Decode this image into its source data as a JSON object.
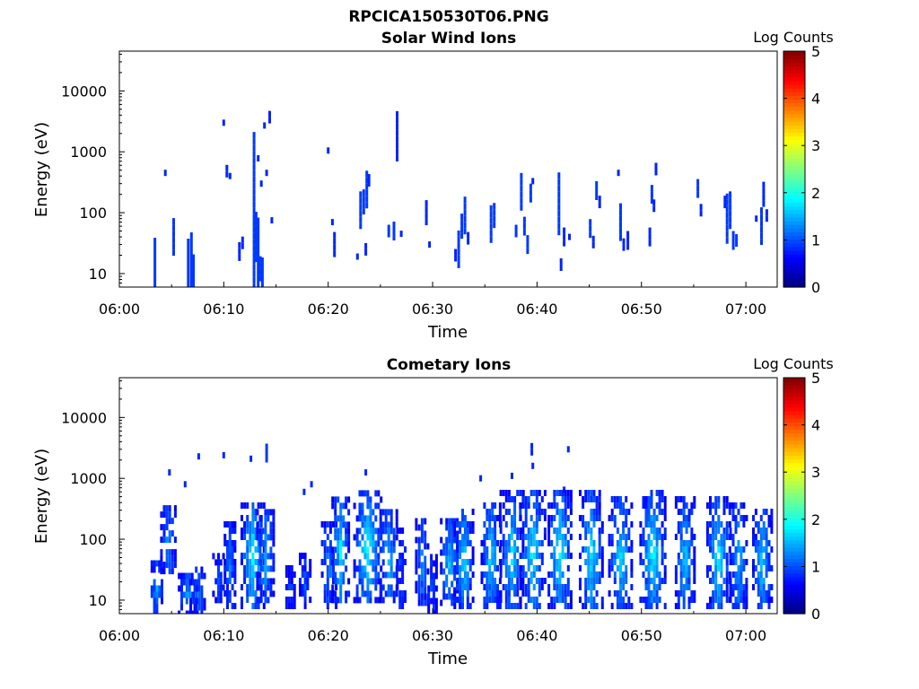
{
  "figure": {
    "title": "RPCICA150530T06.PNG"
  },
  "chart_data": [
    {
      "type": "heatmap",
      "title": "Solar Wind Ions",
      "xlabel": "Time",
      "ylabel": "Energy (eV)",
      "x_ticks": [
        "06:00",
        "06:10",
        "06:20",
        "06:30",
        "06:40",
        "06:50",
        "07:00"
      ],
      "x_range_minutes": [
        0,
        63
      ],
      "y_scale": "log",
      "y_range": [
        6,
        45000
      ],
      "y_ticks": [
        "10",
        "100",
        "1000",
        "10000"
      ],
      "colorbar": {
        "label": "Log Counts",
        "range": [
          0,
          5
        ],
        "ticks": [
          "0",
          "1",
          "2",
          "3",
          "4",
          "5"
        ],
        "colormap": "jet"
      },
      "cells": [
        [
          3.4,
          15,
          8,
          0.9
        ],
        [
          4.4,
          450,
          1,
          0.8
        ],
        [
          5.2,
          40,
          6,
          0.9
        ],
        [
          6.6,
          9,
          12,
          0.9
        ],
        [
          6.9,
          9,
          14,
          0.9
        ],
        [
          7.1,
          8,
          8,
          0.9
        ],
        [
          10.0,
          3000,
          1,
          0.8
        ],
        [
          10.3,
          480,
          2,
          0.8
        ],
        [
          10.6,
          400,
          1,
          0.8
        ],
        [
          11.5,
          23,
          3,
          0.8
        ],
        [
          11.8,
          32,
          2,
          0.8
        ],
        [
          12.9,
          60,
          30,
          0.9
        ],
        [
          13.1,
          40,
          8,
          0.9
        ],
        [
          13.3,
          20,
          12,
          0.9
        ],
        [
          13.5,
          12,
          4,
          0.9
        ],
        [
          13.7,
          9,
          6,
          0.9
        ],
        [
          13.3,
          780,
          1,
          0.8
        ],
        [
          13.6,
          300,
          1,
          0.8
        ],
        [
          13.9,
          2700,
          1,
          0.8
        ],
        [
          14.1,
          450,
          1,
          0.8
        ],
        [
          14.4,
          3700,
          2,
          0.8
        ],
        [
          14.6,
          75,
          1,
          0.8
        ],
        [
          20.0,
          1050,
          1,
          0.8
        ],
        [
          20.4,
          70,
          1,
          0.8
        ],
        [
          20.6,
          30,
          4,
          0.8
        ],
        [
          22.8,
          19,
          1,
          0.8
        ],
        [
          23.1,
          110,
          6,
          0.9
        ],
        [
          23.4,
          150,
          4,
          0.9
        ],
        [
          23.7,
          240,
          6,
          0.9
        ],
        [
          23.9,
          340,
          2,
          0.8
        ],
        [
          23.6,
          25,
          2,
          0.8
        ],
        [
          25.8,
          50,
          2,
          0.9
        ],
        [
          26.3,
          50,
          3,
          0.9
        ],
        [
          26.6,
          1800,
          8,
          0.8
        ],
        [
          27.0,
          45,
          1,
          0.8
        ],
        [
          29.4,
          100,
          4,
          0.8
        ],
        [
          29.7,
          30,
          1,
          0.8
        ],
        [
          32.2,
          20,
          2,
          0.8
        ],
        [
          32.5,
          25,
          6,
          0.9
        ],
        [
          32.8,
          60,
          4,
          0.9
        ],
        [
          33.1,
          90,
          6,
          0.9
        ],
        [
          33.4,
          38,
          2,
          0.8
        ],
        [
          35.6,
          65,
          6,
          0.9
        ],
        [
          35.9,
          90,
          4,
          0.9
        ],
        [
          38.0,
          50,
          2,
          0.9
        ],
        [
          38.5,
          220,
          6,
          0.9
        ],
        [
          38.8,
          60,
          3,
          0.9
        ],
        [
          39.1,
          30,
          3,
          0.9
        ],
        [
          39.4,
          210,
          3,
          0.9
        ],
        [
          39.6,
          330,
          1,
          0.8
        ],
        [
          42.1,
          140,
          10,
          0.9
        ],
        [
          42.3,
          14,
          2,
          0.8
        ],
        [
          42.6,
          40,
          3,
          0.8
        ],
        [
          43.1,
          40,
          1,
          0.8
        ],
        [
          45.1,
          55,
          3,
          0.9
        ],
        [
          45.4,
          33,
          2,
          0.8
        ],
        [
          45.7,
          230,
          3,
          0.9
        ],
        [
          46.0,
          150,
          2,
          0.8
        ],
        [
          48.0,
          70,
          6,
          0.9
        ],
        [
          48.3,
          30,
          2,
          0.8
        ],
        [
          48.7,
          35,
          3,
          0.8
        ],
        [
          47.8,
          450,
          1,
          0.8
        ],
        [
          51.0,
          200,
          3,
          0.9
        ],
        [
          51.4,
          520,
          2,
          0.8
        ],
        [
          51.2,
          130,
          2,
          0.8
        ],
        [
          50.8,
          40,
          3,
          0.8
        ],
        [
          55.4,
          250,
          3,
          0.9
        ],
        [
          55.7,
          110,
          2,
          0.8
        ],
        [
          58.0,
          150,
          2,
          0.8
        ],
        [
          58.2,
          80,
          8,
          0.9
        ],
        [
          58.5,
          110,
          6,
          0.9
        ],
        [
          58.8,
          35,
          3,
          0.9
        ],
        [
          59.1,
          35,
          2,
          0.9
        ],
        [
          61.0,
          80,
          1,
          0.8
        ],
        [
          61.5,
          60,
          6,
          0.9
        ],
        [
          61.7,
          200,
          4,
          0.8
        ],
        [
          62.0,
          90,
          2,
          0.8
        ]
      ]
    },
    {
      "type": "heatmap",
      "title": "Cometary Ions",
      "xlabel": "Time",
      "ylabel": "Energy (eV)",
      "x_ticks": [
        "06:00",
        "06:10",
        "06:20",
        "06:30",
        "06:40",
        "06:50",
        "07:00"
      ],
      "x_range_minutes": [
        0,
        63
      ],
      "y_scale": "log",
      "y_range": [
        6,
        45000
      ],
      "y_ticks": [
        "10",
        "100",
        "1000",
        "10000"
      ],
      "colorbar": {
        "label": "Log Counts",
        "range": [
          0,
          5
        ],
        "ticks": [
          "0",
          "1",
          "2",
          "3",
          "4",
          "5"
        ],
        "colormap": "jet"
      },
      "bursts": [
        [
          3.6,
          6,
          45,
          0.6,
          1.4
        ],
        [
          4.7,
          30,
          400,
          0.8,
          1.3
        ],
        [
          6.6,
          6,
          30,
          1.0,
          1.4
        ],
        [
          7.5,
          6,
          40,
          0.8,
          1.2
        ],
        [
          9.5,
          10,
          60,
          0.6,
          1.0
        ],
        [
          10.6,
          8,
          200,
          0.6,
          1.2
        ],
        [
          12.8,
          8,
          450,
          1.2,
          1.9
        ],
        [
          14.0,
          10,
          350,
          0.9,
          1.5
        ],
        [
          16.4,
          8,
          40,
          0.5,
          0.9
        ],
        [
          17.8,
          8,
          60,
          0.6,
          1.0
        ],
        [
          20.1,
          8,
          200,
          0.8,
          1.3
        ],
        [
          21.2,
          10,
          500,
          0.9,
          1.8
        ],
        [
          23.8,
          10,
          700,
          1.4,
          1.9
        ],
        [
          25.8,
          10,
          300,
          0.9,
          1.6
        ],
        [
          27.0,
          8,
          150,
          0.5,
          1.0
        ],
        [
          29.0,
          9,
          200,
          0.7,
          1.3
        ],
        [
          30.0,
          6,
          60,
          0.5,
          1.1
        ],
        [
          31.6,
          9,
          200,
          0.9,
          1.6
        ],
        [
          33.0,
          8,
          350,
          1.0,
          1.8
        ],
        [
          35.6,
          8,
          400,
          1.0,
          1.7
        ],
        [
          37.6,
          8,
          600,
          1.2,
          1.7
        ],
        [
          39.6,
          8,
          700,
          1.3,
          1.8
        ],
        [
          42.2,
          8,
          700,
          1.2,
          1.9
        ],
        [
          45.2,
          8,
          600,
          1.2,
          1.8
        ],
        [
          48.0,
          8,
          500,
          1.2,
          1.7
        ],
        [
          51.1,
          8,
          600,
          1.3,
          1.9
        ],
        [
          54.2,
          8,
          500,
          1.0,
          1.6
        ],
        [
          57.4,
          8,
          500,
          1.2,
          1.8
        ],
        [
          59.3,
          8,
          400,
          0.9,
          1.6
        ],
        [
          61.6,
          8,
          300,
          1.0,
          1.7
        ]
      ],
      "cells": [
        [
          4.8,
          1250,
          1,
          0.8
        ],
        [
          6.3,
          800,
          1,
          0.8
        ],
        [
          7.6,
          2300,
          1,
          0.8
        ],
        [
          10.0,
          2400,
          1,
          0.8
        ],
        [
          12.6,
          2100,
          1,
          0.8
        ],
        [
          14.1,
          2600,
          3,
          0.9
        ],
        [
          17.7,
          600,
          1,
          0.8
        ],
        [
          18.4,
          800,
          1,
          0.8
        ],
        [
          23.6,
          1250,
          1,
          0.8
        ],
        [
          34.6,
          1000,
          1,
          0.8
        ],
        [
          37.6,
          1100,
          1,
          0.8
        ],
        [
          39.5,
          3000,
          2,
          0.8
        ],
        [
          39.6,
          1600,
          1,
          0.8
        ],
        [
          42.6,
          650,
          1,
          0.8
        ],
        [
          43.0,
          3000,
          1,
          0.8
        ]
      ]
    }
  ]
}
